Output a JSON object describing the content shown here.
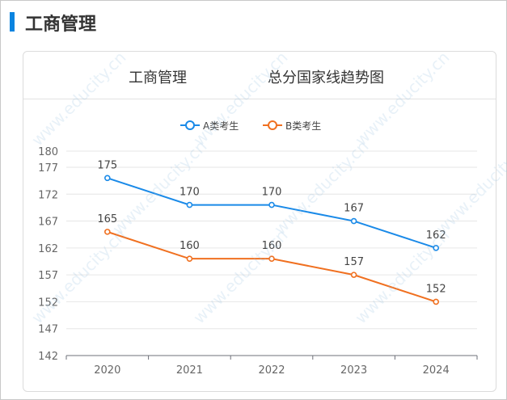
{
  "header": {
    "title": "工商管理"
  },
  "card": {
    "title_left": "工商管理",
    "title_right": "总分国家线趋势图"
  },
  "watermark": {
    "site": "www.educity.cn",
    "brand": "希赛网"
  },
  "chart_data": {
    "type": "line",
    "categories": [
      "2020",
      "2021",
      "2022",
      "2023",
      "2024"
    ],
    "series": [
      {
        "name": "A类考生",
        "values": [
          175,
          170,
          170,
          167,
          162
        ],
        "color": "#1a8ae8"
      },
      {
        "name": "B类考生",
        "values": [
          165,
          160,
          160,
          157,
          152
        ],
        "color": "#f07020"
      }
    ],
    "yticks": [
      142,
      147,
      152,
      157,
      162,
      167,
      172,
      177,
      180
    ],
    "ylim": [
      142,
      180
    ],
    "grid": true,
    "legend": "top-center",
    "data_labels": true
  }
}
